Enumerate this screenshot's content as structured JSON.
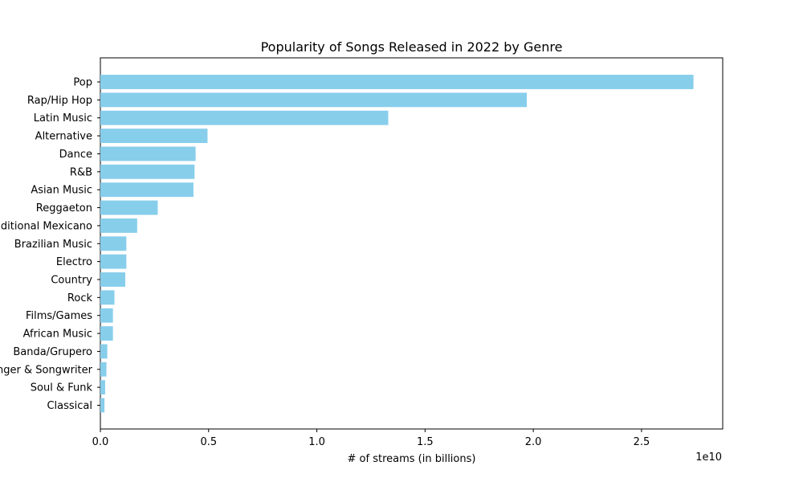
{
  "chart_data": {
    "type": "bar",
    "orientation": "horizontal",
    "title": "Popularity of Songs Released in 2022 by Genre",
    "xlabel": "# of streams (in billions)",
    "ylabel": "",
    "x_offset_label": "1e10",
    "categories": [
      "Pop",
      "Rap/Hip Hop",
      "Latin Music",
      "Alternative",
      "Dance",
      "R&B",
      "Asian Music",
      "Reggaeton",
      "Traditional Mexicano",
      "Brazilian Music",
      "Electro",
      "Country",
      "Rock",
      "Films/Games",
      "African Music",
      "Banda/Grupero",
      "Singer & Songwriter",
      "Soul & Funk",
      "Classical"
    ],
    "values": [
      2.74,
      1.97,
      1.33,
      0.495,
      0.44,
      0.435,
      0.43,
      0.265,
      0.17,
      0.12,
      0.12,
      0.115,
      0.065,
      0.058,
      0.058,
      0.032,
      0.028,
      0.022,
      0.019
    ],
    "value_unit_multiplier": "1e10",
    "xlim": [
      0,
      2.875
    ],
    "xticks": [
      0.0,
      0.5,
      1.0,
      1.5,
      2.0,
      2.5
    ],
    "xtick_labels": [
      "0.0",
      "0.5",
      "1.0",
      "1.5",
      "2.0",
      "2.5"
    ],
    "grid": false,
    "bar_color": "#87CEEB"
  }
}
